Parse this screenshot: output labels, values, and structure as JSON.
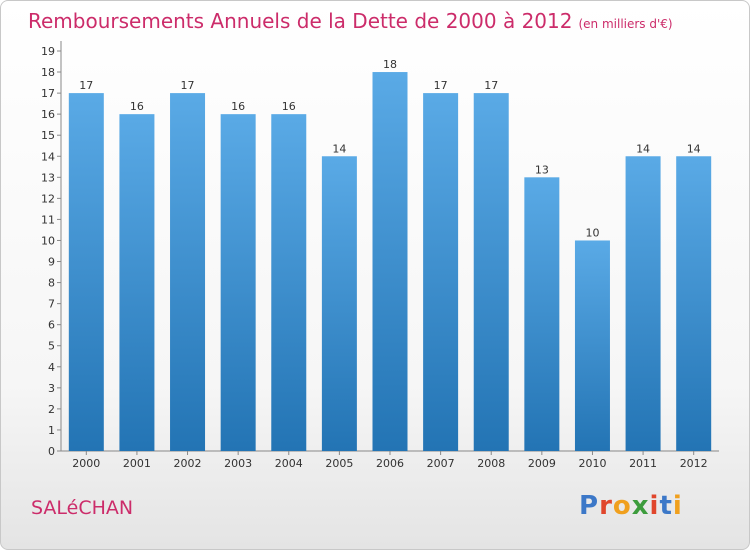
{
  "header": {
    "title": "Remboursements Annuels de la Dette de 2000 à 2012",
    "unit": "(en milliers d'€)"
  },
  "footer": {
    "commune": "SALéCHAN",
    "logo": [
      "P",
      "r",
      "o",
      "x",
      "i",
      "t",
      "i"
    ]
  },
  "colors": {
    "bar_top": "#5aaae6",
    "bar_bottom": "#2374b4",
    "title": "#cc2c6a",
    "logo": [
      "#3c78c8",
      "#e0462c",
      "#f0a01e",
      "#3c9c3c",
      "#e0462c",
      "#3c78c8",
      "#f0a01e"
    ]
  },
  "chart_data": {
    "type": "bar",
    "title": "Remboursements Annuels de la Dette de 2000 à 2012",
    "categories": [
      "2000",
      "2001",
      "2002",
      "2003",
      "2004",
      "2005",
      "2006",
      "2007",
      "2008",
      "2009",
      "2010",
      "2011",
      "2012"
    ],
    "values": [
      17,
      16,
      17,
      16,
      16,
      14,
      18,
      17,
      17,
      13,
      10,
      14,
      14
    ],
    "ylim": [
      0,
      19
    ],
    "yticks": [
      0,
      1,
      2,
      3,
      4,
      5,
      6,
      7,
      8,
      9,
      10,
      11,
      12,
      13,
      14,
      15,
      16,
      17,
      18,
      19
    ],
    "grid": false,
    "data_labels": true
  }
}
